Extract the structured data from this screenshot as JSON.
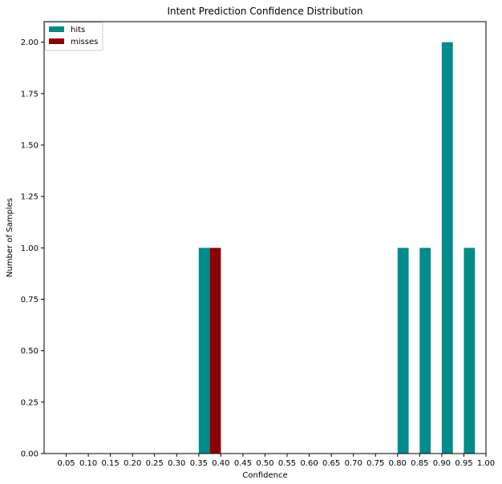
{
  "chart_data": {
    "type": "bar",
    "title": "Intent Prediction Confidence Distribution",
    "xlabel": "Confidence",
    "ylabel": "Number of Samples",
    "xlim": [
      0.0,
      1.0
    ],
    "ylim": [
      0,
      2.1
    ],
    "x_ticks": [
      "0.05",
      "0.10",
      "0.15",
      "0.20",
      "0.25",
      "0.30",
      "0.35",
      "0.40",
      "0.45",
      "0.50",
      "0.55",
      "0.60",
      "0.65",
      "0.70",
      "0.75",
      "0.80",
      "0.85",
      "0.90",
      "0.95",
      "1.00"
    ],
    "y_ticks": [
      "0.00",
      "0.25",
      "0.50",
      "0.75",
      "1.00",
      "1.25",
      "1.50",
      "1.75",
      "2.00"
    ],
    "bin_width": 0.05,
    "series": [
      {
        "name": "hits",
        "color": "#008b8b",
        "bars": [
          {
            "x": 0.35,
            "value": 1
          },
          {
            "x": 0.8,
            "value": 1
          },
          {
            "x": 0.85,
            "value": 1
          },
          {
            "x": 0.9,
            "value": 2
          },
          {
            "x": 0.95,
            "value": 1
          }
        ]
      },
      {
        "name": "misses",
        "color": "#8b0000",
        "bars": [
          {
            "x": 0.35,
            "value": 1
          }
        ]
      }
    ],
    "legend": "top-left",
    "grid": false
  }
}
